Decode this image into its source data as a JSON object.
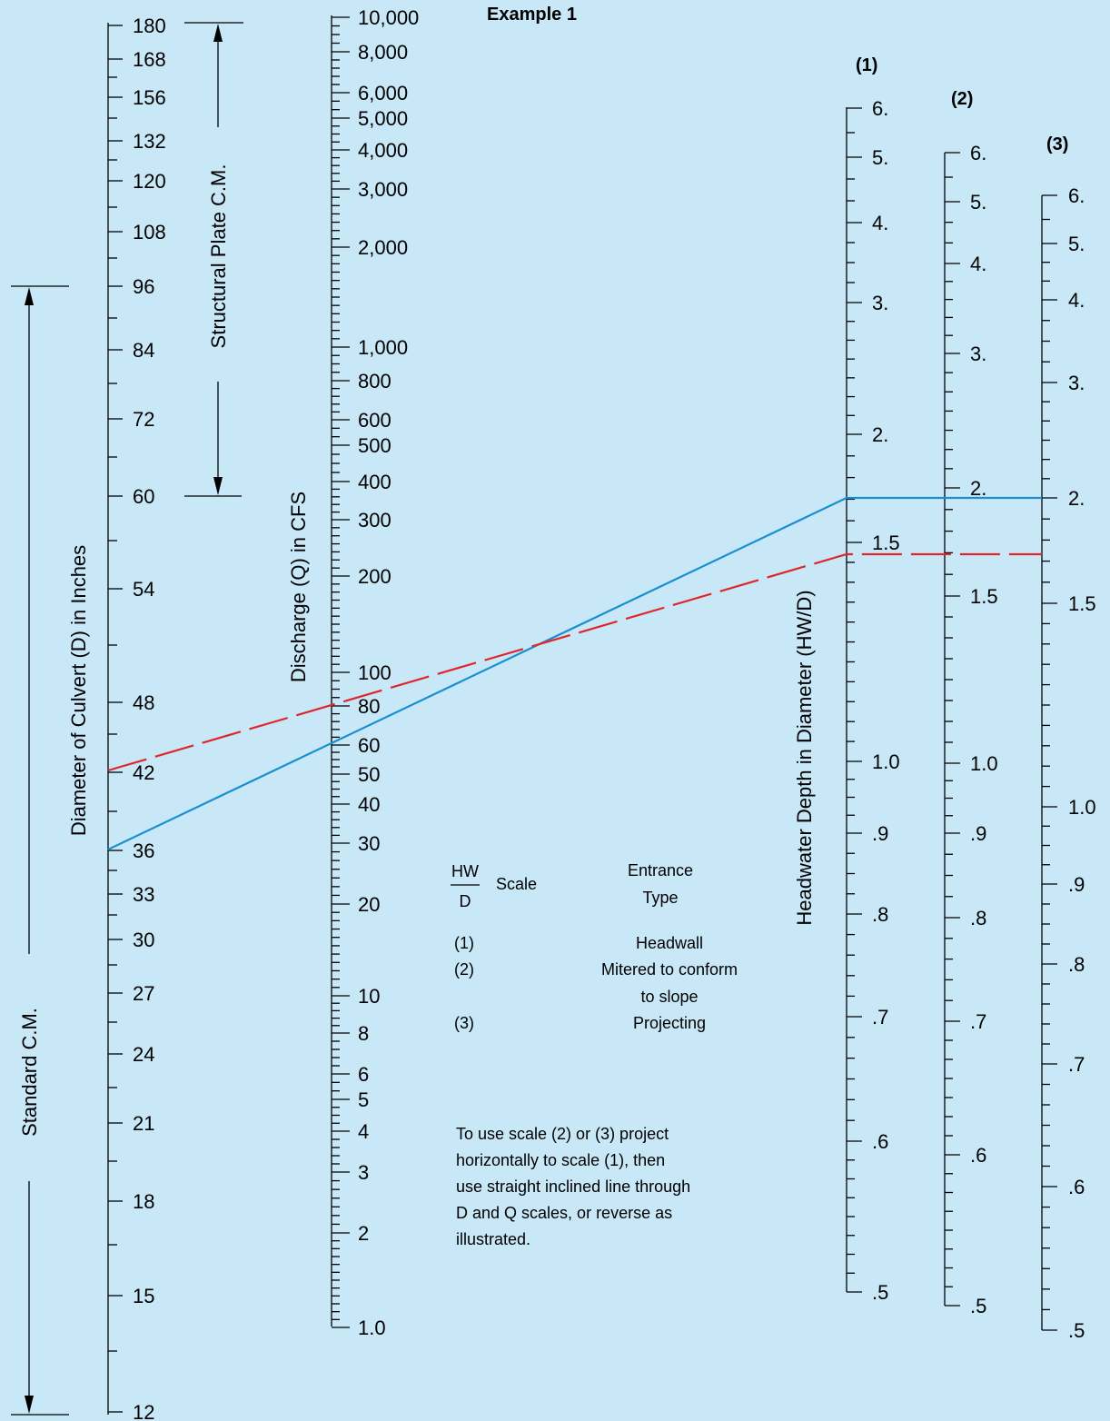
{
  "title": "Example 1",
  "scale_headers": [
    "(1)",
    "(2)",
    "(3)"
  ],
  "axis_titles": {
    "diameter": "Diameter of Culvert (D) in Inches",
    "discharge": "Discharge (Q) in CFS",
    "headwater": "Headwater Depth in Diameter (HW/D)"
  },
  "range_labels": {
    "structural": "Structural Plate C.M.",
    "standard": "Standard C.M."
  },
  "legend": {
    "hw_numer": "HW",
    "hw_denom": "D",
    "scale_word": "Scale",
    "entrance_line1": "Entrance",
    "entrance_line2": "Type",
    "rows": [
      {
        "scale": "(1)",
        "type_lines": [
          "Headwall"
        ]
      },
      {
        "scale": "(2)",
        "type_lines": [
          "Mitered to conform",
          "to slope"
        ]
      },
      {
        "scale": "(3)",
        "type_lines": [
          "Projecting"
        ]
      }
    ]
  },
  "note_lines": [
    "To use scale (2) or (3) project",
    "horizontally to scale (1), then",
    "use straight inclined line through",
    "D and Q scales, or reverse as",
    "illustrated."
  ],
  "scales": {
    "diameter_labels": [
      "180",
      "168",
      "156",
      "132",
      "120",
      "108",
      "96",
      "84",
      "72",
      "60",
      "54",
      "48",
      "42",
      "36",
      "33",
      "30",
      "27",
      "24",
      "21",
      "18",
      "15",
      "12"
    ],
    "discharge_labels": [
      "10,000",
      "8,000",
      "6,000",
      "5,000",
      "4,000",
      "3,000",
      "2,000",
      "1,000",
      "800",
      "600",
      "500",
      "400",
      "300",
      "200",
      "100",
      "80",
      "60",
      "50",
      "40",
      "30",
      "20",
      "10",
      "8",
      "6",
      "5",
      "4",
      "3",
      "2",
      "1.0"
    ],
    "hwd1_labels": [
      "6.",
      "5.",
      "4.",
      "3.",
      "2.",
      "1.5",
      "1.0",
      ".9",
      ".8",
      ".7",
      ".6",
      ".5"
    ],
    "hwd2_labels": [
      "6.",
      "5.",
      "4.",
      "3.",
      "2.",
      "1.5",
      "1.0",
      ".9",
      ".8",
      ".7",
      ".6",
      ".5"
    ],
    "hwd3_labels": [
      "6.",
      "5.",
      "4.",
      "3.",
      "2.",
      "1.5",
      "1.0",
      ".9",
      ".8",
      ".7",
      ".6",
      ".5"
    ]
  },
  "colors": {
    "background": "#c8e8f8",
    "solid_line": "#1a8fcf",
    "dashed_line": "#e0262d"
  }
}
